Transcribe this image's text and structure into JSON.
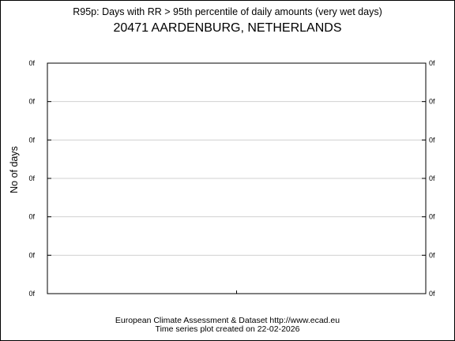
{
  "chart_data": {
    "type": "line",
    "title": "20471 AARDENBURG, NETHERLANDS",
    "subtitle": "R95p: Days with RR > 95th percentile of daily amounts (very wet days)",
    "ylabel": "No of days",
    "xlabel": "",
    "y_tick_labels": [
      "0f",
      "0f",
      "0f",
      "0f",
      "0f",
      "0f",
      "0f"
    ],
    "x_tick_labels": [],
    "series": [],
    "grid": true,
    "legend": "none"
  },
  "footer": {
    "line1": "European Climate Assessment & Dataset  http://www.ecad.eu",
    "line2": "Time series plot created on 22-02-2026"
  }
}
